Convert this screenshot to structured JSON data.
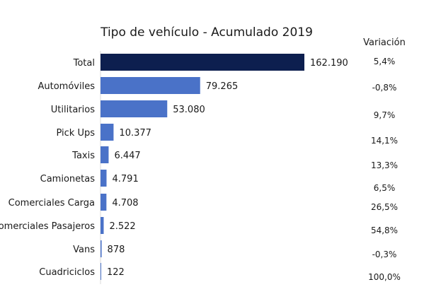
{
  "chart_data": {
    "type": "bar",
    "orientation": "horizontal",
    "title": "Tipo de vehículo - Acumulado 2019",
    "categories": [
      "Total",
      "Automóviles",
      "Utilitarios",
      "Pick Ups",
      "Taxis",
      "Camionetas",
      "Comerciales Carga",
      "Comerciales Pasajeros",
      "Vans",
      "Cuadriciclos"
    ],
    "values": [
      162190,
      79265,
      53080,
      10377,
      6447,
      4791,
      4708,
      2522,
      878,
      122
    ],
    "value_labels": [
      "162.190",
      "79.265",
      "53.080",
      "10.377",
      "6.447",
      "4.791",
      "4.708",
      "2.522",
      "878",
      "122"
    ],
    "variation_header": "Variación",
    "variation": [
      "5,4%",
      "-0,8%",
      "9,7%",
      "14,1%",
      "13,3%",
      "6,5%",
      "26,5%",
      "54,8%",
      "-0,3%",
      "100,0%"
    ],
    "colors": {
      "total": "#0d1f4f",
      "bars": "#4a72c8",
      "axis": "#d9d9d9"
    },
    "grid": false,
    "legend": "none",
    "xlim": [
      0,
      162190
    ]
  }
}
